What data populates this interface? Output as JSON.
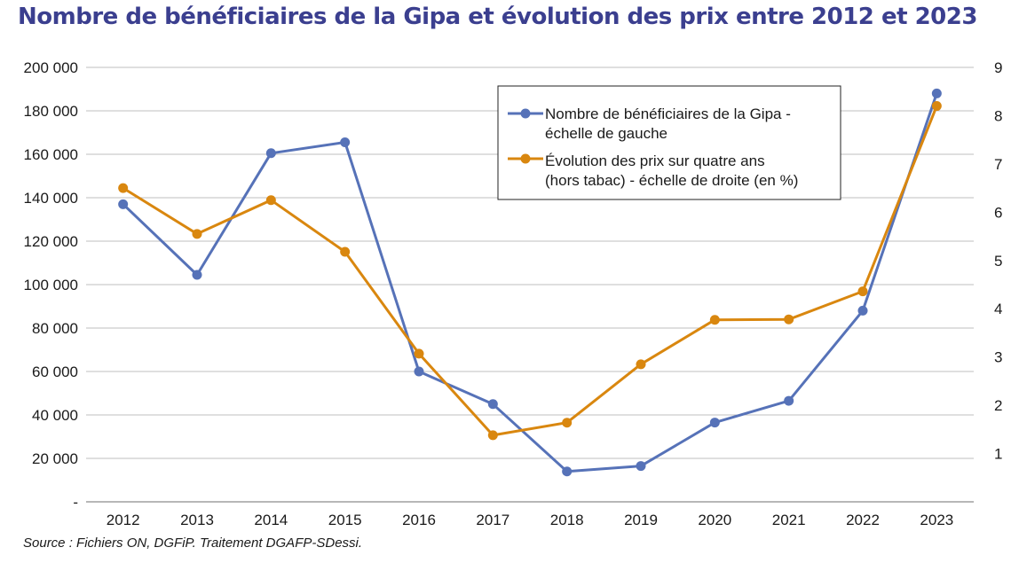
{
  "title": "Nombre de bénéficiaires de la Gipa et évolution des prix entre 2012 et 2023",
  "source": "Source : Fichiers ON, DGFiP. Traitement DGAFP-SDessi.",
  "colors": {
    "title": "#3b3f8f",
    "series_left": "#5672b8",
    "series_right": "#d9870f",
    "grid": "#bfbfbf"
  },
  "chart_data": {
    "type": "line",
    "x": [
      "2012",
      "2013",
      "2014",
      "2015",
      "2016",
      "2017",
      "2018",
      "2019",
      "2020",
      "2021",
      "2022",
      "2023"
    ],
    "series": [
      {
        "name": "Nombre de bénéficiaires de la Gipa - échelle de gauche",
        "legend_lines": [
          "Nombre de bénéficiaires de la Gipa -",
          "échelle de gauche"
        ],
        "axis": "left",
        "values": [
          137000,
          104500,
          160500,
          165500,
          60000,
          45000,
          14000,
          16500,
          36500,
          46500,
          88000,
          188000
        ]
      },
      {
        "name": "Évolution des prix sur quatre ans (hors tabac) - échelle de droite (en %)",
        "legend_lines": [
          "Évolution des prix sur quatre ans",
          "(hors tabac) - échelle de droite (en %)"
        ],
        "axis": "right",
        "values": [
          6.5,
          5.55,
          6.25,
          5.18,
          3.07,
          1.38,
          1.64,
          2.85,
          3.77,
          3.78,
          4.36,
          8.2
        ]
      }
    ],
    "y_left": {
      "range": [
        0,
        200000
      ],
      "ticks": [
        0,
        20000,
        40000,
        60000,
        80000,
        100000,
        120000,
        140000,
        160000,
        180000,
        200000
      ],
      "tick_labels": [
        "-",
        "20 000",
        "40 000",
        "60 000",
        "80 000",
        "100 000",
        "120 000",
        "140 000",
        "160 000",
        "180 000",
        "200 000"
      ]
    },
    "y_right": {
      "range": [
        0,
        9
      ],
      "ticks": [
        1,
        2,
        3,
        4,
        5,
        6,
        7,
        8,
        9
      ],
      "tick_labels": [
        "1",
        "2",
        "3",
        "4",
        "5",
        "6",
        "7",
        "8",
        "9"
      ]
    },
    "grid": true,
    "legend": "top-right"
  }
}
